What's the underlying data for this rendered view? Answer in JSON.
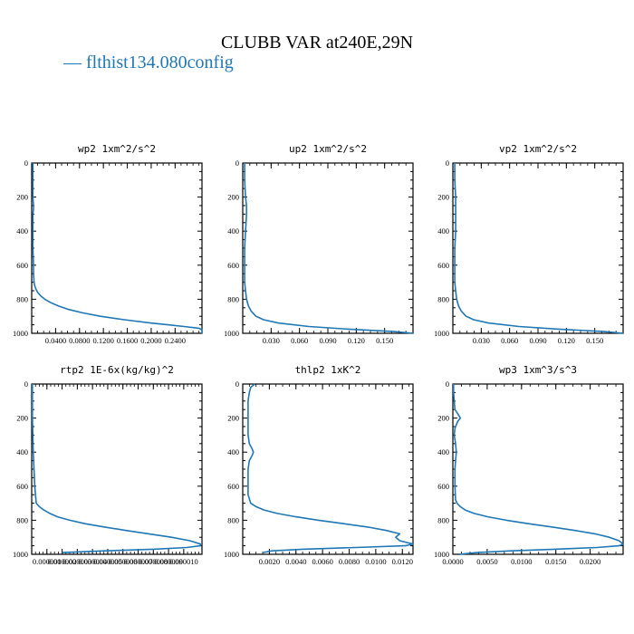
{
  "title": "CLUBB VAR at240E,29N",
  "legend": {
    "label": "— flthist134.080config",
    "color": "#1f77b4"
  },
  "chart_data": [
    {
      "type": "line",
      "title": "wp2   1xm^2/s^2",
      "xlim": [
        0.0,
        0.285
      ],
      "ylim": [
        1000,
        0
      ],
      "yticks": [
        0,
        200,
        400,
        600,
        800,
        1000
      ],
      "xticks": [
        0.04,
        0.08,
        0.12,
        0.16,
        0.2,
        0.24
      ],
      "xticklabels": [
        "0.0400",
        "0.0800",
        "0.1200",
        "0.1600",
        "0.2000",
        "0.2400"
      ],
      "series": [
        {
          "y": [
            0,
            100,
            200,
            250,
            255,
            270,
            300,
            400,
            500,
            600,
            650,
            700,
            720,
            740,
            760,
            780,
            800,
            820,
            840,
            860,
            880,
            900,
            920,
            940,
            950,
            960,
            970,
            980,
            990,
            1000
          ],
          "x": [
            0.002,
            0.002,
            0.002,
            0.003,
            0.003,
            0.003,
            0.002,
            0.002,
            0.002,
            0.003,
            0.003,
            0.004,
            0.005,
            0.007,
            0.01,
            0.015,
            0.022,
            0.032,
            0.045,
            0.062,
            0.085,
            0.115,
            0.155,
            0.2,
            0.228,
            0.255,
            0.28,
            0.285,
            0.285,
            0.285
          ]
        }
      ]
    },
    {
      "type": "line",
      "title": "up2   1xm^2/s^2",
      "xlim": [
        0.0,
        0.18
      ],
      "ylim": [
        1000,
        0
      ],
      "yticks": [
        0,
        200,
        400,
        600,
        800,
        1000
      ],
      "xticks": [
        0.03,
        0.06,
        0.09,
        0.12,
        0.15
      ],
      "xticklabels": [
        "0.030",
        "0.060",
        "0.090",
        "0.120",
        "0.150"
      ],
      "series": [
        {
          "y": [
            0,
            100,
            200,
            250,
            300,
            400,
            500,
            600,
            700,
            750,
            800,
            840,
            870,
            900,
            920,
            940,
            960,
            975,
            990,
            1000
          ],
          "x": [
            0.002,
            0.002,
            0.003,
            0.004,
            0.004,
            0.003,
            0.002,
            0.002,
            0.002,
            0.003,
            0.004,
            0.006,
            0.009,
            0.014,
            0.022,
            0.038,
            0.07,
            0.11,
            0.16,
            0.18
          ]
        }
      ]
    },
    {
      "type": "line",
      "title": "vp2   1xm^2/s^2",
      "xlim": [
        0.0,
        0.18
      ],
      "ylim": [
        1000,
        0
      ],
      "yticks": [
        0,
        200,
        400,
        600,
        800,
        1000
      ],
      "xticks": [
        0.03,
        0.06,
        0.09,
        0.12,
        0.15
      ],
      "xticklabels": [
        "0.030",
        "0.060",
        "0.090",
        "0.120",
        "0.150"
      ],
      "series": [
        {
          "y": [
            0,
            100,
            200,
            300,
            400,
            500,
            600,
            700,
            750,
            800,
            840,
            870,
            900,
            920,
            940,
            960,
            975,
            990,
            1000
          ],
          "x": [
            0.002,
            0.002,
            0.003,
            0.003,
            0.003,
            0.002,
            0.002,
            0.002,
            0.003,
            0.004,
            0.006,
            0.009,
            0.014,
            0.022,
            0.038,
            0.07,
            0.11,
            0.16,
            0.18
          ]
        }
      ]
    },
    {
      "type": "line",
      "title": "rtp2   1E-6x(kg/kg)^2",
      "xlim": [
        0.0,
        1.12e-05
      ],
      "ylim": [
        1000,
        0
      ],
      "yticks": [
        0,
        200,
        400,
        600,
        800,
        1000
      ],
      "xticks": [
        1e-06,
        2e-06,
        3e-06,
        4e-06,
        5e-06,
        6e-06,
        7e-06,
        8e-06,
        9e-06,
        1e-05
      ],
      "xticklabels": [
        "0.000001",
        "0.000002",
        "0.000003",
        "0.000004",
        "0.000005",
        "0.000006",
        "0.000007",
        "0.000008",
        "0.000009",
        "0.000010"
      ],
      "series": [
        {
          "y": [
            0,
            200,
            400,
            600,
            700,
            720,
            740,
            760,
            780,
            800,
            820,
            840,
            860,
            880,
            900,
            920,
            940,
            950,
            960,
            970,
            980,
            990
          ],
          "x": [
            5e-08,
            5e-08,
            1e-07,
            2e-07,
            3e-07,
            5e-07,
            8e-07,
            1.2e-06,
            1.7e-06,
            2.5e-06,
            3.5e-06,
            4.8e-06,
            6.2e-06,
            7.7e-06,
            9.2e-06,
            1.04e-05,
            1.11e-05,
            1.11e-05,
            1.02e-05,
            8e-06,
            4.8e-06,
            2e-06
          ]
        }
      ]
    },
    {
      "type": "line",
      "title": "thlp2   1xK^2",
      "xlim": [
        0.0,
        0.0128
      ],
      "ylim": [
        1000,
        0
      ],
      "yticks": [
        0,
        200,
        400,
        600,
        800,
        1000
      ],
      "xticks": [
        0.002,
        0.004,
        0.006,
        0.008,
        0.01,
        0.012
      ],
      "xticklabels": [
        "0.0020",
        "0.0040",
        "0.0060",
        "0.0080",
        "0.0100",
        "0.0120"
      ],
      "series": [
        {
          "y": [
            0,
            20,
            50,
            100,
            200,
            300,
            350,
            380,
            400,
            420,
            450,
            500,
            600,
            650,
            700,
            720,
            740,
            760,
            780,
            800,
            820,
            840,
            860,
            880,
            900,
            920,
            940,
            950,
            960,
            970,
            980,
            990
          ],
          "x": [
            0.0009,
            0.0006,
            0.0005,
            0.0004,
            0.0004,
            0.0004,
            0.0005,
            0.0007,
            0.0008,
            0.0007,
            0.0005,
            0.0004,
            0.0004,
            0.0004,
            0.0006,
            0.001,
            0.0016,
            0.0026,
            0.004,
            0.0057,
            0.0076,
            0.0094,
            0.0108,
            0.0118,
            0.0115,
            0.0118,
            0.0128,
            0.0122,
            0.0085,
            0.0045,
            0.0022,
            0.0015
          ]
        }
      ]
    },
    {
      "type": "line",
      "title": "wp3   1xm^3/s^3",
      "xlim": [
        0.0,
        0.0248
      ],
      "ylim": [
        1000,
        0
      ],
      "yticks": [
        0,
        200,
        400,
        600,
        800,
        1000
      ],
      "xticks": [
        0.0,
        0.005,
        0.01,
        0.015,
        0.02
      ],
      "xticklabels": [
        "0.0000",
        "0.0050",
        "0.0100",
        "0.0150",
        "0.0200"
      ],
      "series": [
        {
          "y": [
            0,
            50,
            100,
            150,
            180,
            200,
            220,
            260,
            300,
            350,
            400,
            450,
            500,
            600,
            680,
            700,
            720,
            740,
            760,
            780,
            800,
            820,
            840,
            860,
            880,
            900,
            920,
            940,
            950,
            960,
            970,
            980,
            990,
            1000
          ],
          "x": [
            0.0001,
            0.0001,
            0.0002,
            0.0003,
            0.0008,
            0.0011,
            0.0007,
            0.0003,
            0.0002,
            0.0004,
            0.0005,
            0.0004,
            0.0003,
            0.0003,
            0.0004,
            0.0006,
            0.0011,
            0.0018,
            0.0031,
            0.0051,
            0.0078,
            0.011,
            0.0145,
            0.0178,
            0.0207,
            0.0228,
            0.0242,
            0.0248,
            0.0242,
            0.021,
            0.0148,
            0.0085,
            0.0035,
            0.001
          ]
        }
      ]
    }
  ]
}
